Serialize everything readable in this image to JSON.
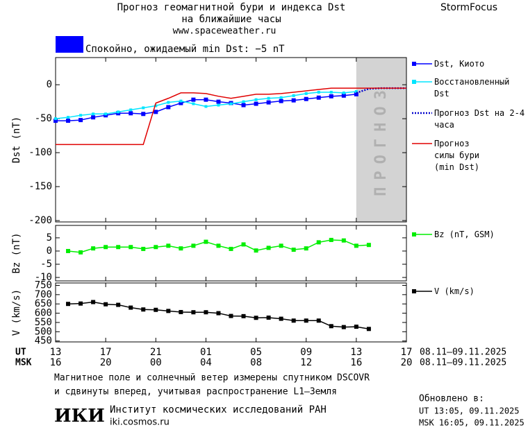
{
  "header": {
    "title": "Прогноз геомагнитной бури и индекса Dst",
    "subtitle": "на ближайшие часы",
    "site": "www.spaceweather.ru",
    "brand": "StormFocus",
    "status": "Спокойно, ожидаемый min Dst: −5 nT",
    "status_color": "#0000ff"
  },
  "chart_data": [
    {
      "type": "line",
      "ylabel": "Dst (nT)",
      "forecast_label": "ПРОГНОЗ",
      "forecast_region": [
        24,
        28
      ],
      "x": [
        0,
        1,
        2,
        3,
        4,
        5,
        6,
        7,
        8,
        9,
        10,
        11,
        12,
        13,
        14,
        15,
        16,
        17,
        18,
        19,
        20,
        21,
        22,
        23,
        24,
        25,
        26,
        27,
        28
      ],
      "xlim": [
        0,
        28
      ],
      "xticks": [
        0,
        4,
        8,
        12,
        16,
        20,
        24,
        28
      ],
      "ylim": [
        -202,
        40
      ],
      "yticks": [
        0,
        -50,
        -100,
        -150,
        -200
      ],
      "series": [
        {
          "name": "Dst, Киото",
          "color": "#0000ff",
          "marker": "square",
          "values": [
            -53,
            -53,
            -52,
            -48,
            -45,
            -42,
            -42,
            -43,
            -40,
            -33,
            -27,
            -22,
            -22,
            -25,
            -27,
            -30,
            -28,
            -26,
            -24,
            -23,
            -21,
            -19,
            -17,
            -16,
            -14,
            null,
            null,
            null,
            null
          ]
        },
        {
          "name": "Восстановленный Dst",
          "color": "#00e5ff",
          "marker": "small",
          "values": [
            -50,
            -48,
            -45,
            -43,
            -43,
            -40,
            -37,
            -34,
            -31,
            -26,
            -24,
            -28,
            -32,
            -30,
            -28,
            -25,
            -22,
            -20,
            -19,
            -16,
            -13,
            -11,
            -11,
            -12,
            -10,
            null,
            null,
            null,
            null
          ]
        },
        {
          "name": "Прогноз Dst на 2-4 часа",
          "color": "#0000cc",
          "dash": true,
          "values": [
            null,
            null,
            null,
            null,
            null,
            null,
            null,
            null,
            null,
            null,
            null,
            null,
            null,
            null,
            null,
            null,
            null,
            null,
            null,
            null,
            null,
            null,
            null,
            null,
            -12,
            -6,
            -5,
            -5,
            -5
          ]
        },
        {
          "name": "Прогноз силы бури (min Dst)",
          "color": "#e00000",
          "values": [
            -88,
            -88,
            -88,
            -88,
            -88,
            -88,
            -88,
            -88,
            -27,
            -20,
            -12,
            -12,
            -13,
            -17,
            -20,
            -17,
            -14,
            -14,
            -13,
            -11,
            -9,
            -7,
            -5,
            -5,
            -5,
            -5,
            -5,
            -5,
            -5
          ]
        }
      ]
    },
    {
      "type": "line",
      "ylabel": "Bz (nT)",
      "x": [
        0,
        1,
        2,
        3,
        4,
        5,
        6,
        7,
        8,
        9,
        10,
        11,
        12,
        13,
        14,
        15,
        16,
        17,
        18,
        19,
        20,
        21,
        22,
        23,
        24,
        25,
        26,
        27,
        28
      ],
      "xlim": [
        0,
        28
      ],
      "xticks": [
        0,
        4,
        8,
        12,
        16,
        20,
        24,
        28
      ],
      "ylim": [
        -11.3,
        9.7
      ],
      "yticks": [
        5,
        0,
        -5,
        -10
      ],
      "series": [
        {
          "name": "Bz (nT, GSM)",
          "color": "#00ee00",
          "marker": "square",
          "values": [
            null,
            0,
            -0.5,
            1,
            1.5,
            1.5,
            1.5,
            0.8,
            1.5,
            2,
            1,
            2,
            3.5,
            2,
            0.8,
            2.5,
            0.2,
            1.2,
            2,
            0.5,
            1,
            3.3,
            4.2,
            4,
            2,
            2.3,
            null,
            null,
            null
          ]
        }
      ]
    },
    {
      "type": "line",
      "ylabel": "V (km/s)",
      "x": [
        0,
        1,
        2,
        3,
        4,
        5,
        6,
        7,
        8,
        9,
        10,
        11,
        12,
        13,
        14,
        15,
        16,
        17,
        18,
        19,
        20,
        21,
        22,
        23,
        24,
        25,
        26,
        27,
        28
      ],
      "xlim": [
        0,
        28
      ],
      "xticks": [
        {
          "value": 0,
          "label": "13"
        },
        {
          "value": 4,
          "label": "17"
        },
        {
          "value": 8,
          "label": "21"
        },
        {
          "value": 12,
          "label": "01"
        },
        {
          "value": 16,
          "label": "05"
        },
        {
          "value": 20,
          "label": "09"
        },
        {
          "value": 24,
          "label": "13"
        },
        {
          "value": 28,
          "label": "17"
        }
      ],
      "msk_ticks": [
        {
          "value": 0,
          "label": "16"
        },
        {
          "value": 4,
          "label": "20"
        },
        {
          "value": 8,
          "label": "00"
        },
        {
          "value": 12,
          "label": "04"
        },
        {
          "value": 16,
          "label": "08"
        },
        {
          "value": 20,
          "label": "12"
        },
        {
          "value": 24,
          "label": "16"
        },
        {
          "value": 28,
          "label": "20"
        }
      ],
      "ut_label": "UT",
      "msk_label": "MSK",
      "ut_dates": "08.11–09.11.2025",
      "msk_dates": "08.11–09.11.2025",
      "ylim": [
        445,
        763
      ],
      "yticks": [
        450,
        500,
        550,
        600,
        650,
        700,
        750
      ],
      "series": [
        {
          "name": "V (km/s)",
          "color": "#000000",
          "marker": "square",
          "values": [
            null,
            650,
            652,
            660,
            648,
            645,
            630,
            620,
            618,
            612,
            606,
            605,
            605,
            600,
            585,
            584,
            575,
            576,
            570,
            560,
            560,
            560,
            530,
            525,
            527,
            515,
            null,
            null,
            null
          ]
        }
      ]
    }
  ],
  "footer": {
    "note1": "Магнитное поле и солнечный ветер измерены спутником DSCOVR",
    "note2": "и сдвинуты вперед, учитывая распространение L1–Земля",
    "logo": "ИКИ",
    "institute": "Институт космических исследований РАН",
    "url": "iki.cosmos.ru",
    "updated": "Обновлено в:",
    "updated_ut": "UT   13:05, 09.11.2025",
    "updated_msk": "MSK 16:05, 09.11.2025"
  }
}
